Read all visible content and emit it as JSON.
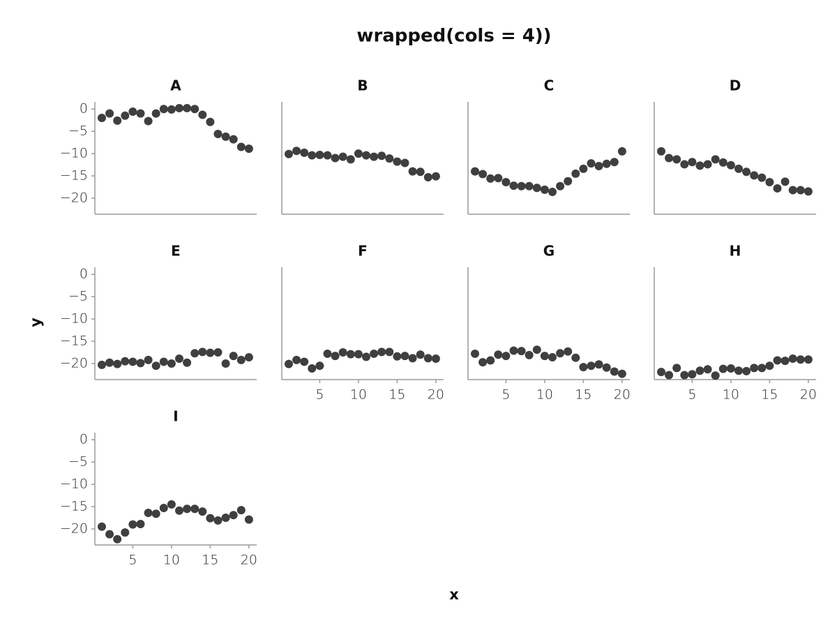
{
  "title": "wrapped(cols = 4))",
  "xlabel": "x",
  "ylabel": "y",
  "chart_data": [
    {
      "type": "scatter",
      "title": "A",
      "color": "#3f3f3f",
      "x": [
        1,
        2,
        3,
        4,
        5,
        6,
        7,
        8,
        9,
        10,
        11,
        12,
        13,
        14,
        15,
        16,
        17,
        18,
        19,
        20
      ],
      "values": [
        -2,
        -1,
        -2.6,
        -1.5,
        -0.6,
        -1,
        -2.7,
        -1,
        0,
        -0.1,
        0.2,
        0.2,
        0,
        -1.3,
        -2.9,
        -5.6,
        -6.2,
        -6.8,
        -8.5,
        -8.9
      ],
      "xlim": [
        0.1,
        21
      ],
      "ylim": [
        -23.6,
        1.6
      ],
      "yticks": [
        0,
        {
          "value": -5,
          "label": "−5"
        },
        {
          "value": -10,
          "label": "−10"
        },
        {
          "value": -15,
          "label": "−15"
        },
        {
          "value": -20,
          "label": "−20"
        }
      ]
    },
    {
      "type": "scatter",
      "title": "B",
      "color": "#3f3f3f",
      "x": [
        1,
        2,
        3,
        4,
        5,
        6,
        7,
        8,
        9,
        10,
        11,
        12,
        13,
        14,
        15,
        16,
        17,
        18,
        19,
        20
      ],
      "values": [
        -10.1,
        -9.4,
        -9.8,
        -10.4,
        -10.3,
        -10.4,
        -11,
        -10.7,
        -11.3,
        -10,
        -10.4,
        -10.7,
        -10.5,
        -11.1,
        -11.8,
        -12.1,
        -14,
        -14.1,
        -15.3,
        -15.1
      ],
      "xlim": [
        0.1,
        21
      ],
      "ylim": [
        -23.6,
        1.6
      ]
    },
    {
      "type": "scatter",
      "title": "C",
      "color": "#3f3f3f",
      "x": [
        1,
        2,
        3,
        4,
        5,
        6,
        7,
        8,
        9,
        10,
        11,
        12,
        13,
        14,
        15,
        16,
        17,
        18,
        19,
        20
      ],
      "values": [
        -14,
        -14.6,
        -15.6,
        -15.5,
        -16.4,
        -17.2,
        -17.3,
        -17.3,
        -17.7,
        -18.1,
        -18.6,
        -17.3,
        -16.2,
        -14.5,
        -13.4,
        -12.2,
        -12.8,
        -12.3,
        -11.9,
        -9.5
      ],
      "xlim": [
        0.1,
        21
      ],
      "ylim": [
        -23.6,
        1.6
      ]
    },
    {
      "type": "scatter",
      "title": "D",
      "color": "#3f3f3f",
      "x": [
        1,
        2,
        3,
        4,
        5,
        6,
        7,
        8,
        9,
        10,
        11,
        12,
        13,
        14,
        15,
        16,
        17,
        18,
        19,
        20
      ],
      "values": [
        -9.5,
        -11,
        -11.3,
        -12.4,
        -11.9,
        -12.7,
        -12.4,
        -11.3,
        -12,
        -12.6,
        -13.4,
        -14.1,
        -14.9,
        -15.4,
        -16.4,
        -17.8,
        -16.3,
        -18.2,
        -18.2,
        -18.5
      ],
      "xlim": [
        0.1,
        21
      ],
      "ylim": [
        -23.6,
        1.6
      ]
    },
    {
      "type": "scatter",
      "title": "E",
      "color": "#3f3f3f",
      "x": [
        1,
        2,
        3,
        4,
        5,
        6,
        7,
        8,
        9,
        10,
        11,
        12,
        13,
        14,
        15,
        16,
        17,
        18,
        19,
        20
      ],
      "values": [
        -20.3,
        -19.8,
        -20.1,
        -19.5,
        -19.6,
        -19.9,
        -19.2,
        -20.5,
        -19.6,
        -20,
        -18.9,
        -19.8,
        -17.7,
        -17.4,
        -17.6,
        -17.5,
        -20,
        -18.3,
        -19.2,
        -18.6
      ],
      "xlim": [
        0.1,
        21
      ],
      "ylim": [
        -23.6,
        1.6
      ],
      "yticks": [
        0,
        {
          "value": -5,
          "label": "−5"
        },
        {
          "value": -10,
          "label": "−10"
        },
        {
          "value": -15,
          "label": "−15"
        },
        {
          "value": -20,
          "label": "−20"
        }
      ]
    },
    {
      "type": "scatter",
      "title": "F",
      "color": "#3f3f3f",
      "x": [
        1,
        2,
        3,
        4,
        5,
        6,
        7,
        8,
        9,
        10,
        11,
        12,
        13,
        14,
        15,
        16,
        17,
        18,
        19,
        20
      ],
      "values": [
        -20.1,
        -19.2,
        -19.6,
        -21.1,
        -20.5,
        -17.8,
        -18.3,
        -17.5,
        -17.9,
        -17.9,
        -18.5,
        -17.8,
        -17.4,
        -17.4,
        -18.4,
        -18.3,
        -18.8,
        -18,
        -18.8,
        -18.9
      ],
      "xlim": [
        0.1,
        21
      ],
      "ylim": [
        -23.6,
        1.6
      ],
      "xticks": [
        5,
        10,
        15,
        20
      ]
    },
    {
      "type": "scatter",
      "title": "G",
      "color": "#3f3f3f",
      "x": [
        1,
        2,
        3,
        4,
        5,
        6,
        7,
        8,
        9,
        10,
        11,
        12,
        13,
        14,
        15,
        16,
        17,
        18,
        19,
        20
      ],
      "values": [
        -17.8,
        -19.7,
        -19.3,
        -18,
        -18.3,
        -17.1,
        -17.2,
        -18.1,
        -16.9,
        -18.3,
        -18.6,
        -17.7,
        -17.3,
        -18.7,
        -20.8,
        -20.5,
        -20.2,
        -20.9,
        -21.8,
        -22.3
      ],
      "xlim": [
        0.1,
        21
      ],
      "ylim": [
        -23.6,
        1.6
      ],
      "xticks": [
        5,
        10,
        15,
        20
      ]
    },
    {
      "type": "scatter",
      "title": "H",
      "color": "#3f3f3f",
      "x": [
        1,
        2,
        3,
        4,
        5,
        6,
        7,
        8,
        9,
        10,
        11,
        12,
        13,
        14,
        15,
        16,
        17,
        18,
        19,
        20
      ],
      "values": [
        -21.9,
        -22.6,
        -21,
        -22.6,
        -22.4,
        -21.6,
        -21.3,
        -22.7,
        -21.2,
        -21.1,
        -21.6,
        -21.7,
        -21,
        -21,
        -20.5,
        -19.3,
        -19.4,
        -18.9,
        -19.1,
        -19.1
      ],
      "xlim": [
        0.1,
        21
      ],
      "ylim": [
        -23.6,
        1.6
      ],
      "xticks": [
        5,
        10,
        15,
        20
      ]
    },
    {
      "type": "scatter",
      "title": "I",
      "color": "#3f3f3f",
      "x": [
        1,
        2,
        3,
        4,
        5,
        6,
        7,
        8,
        9,
        10,
        11,
        12,
        13,
        14,
        15,
        16,
        17,
        18,
        19,
        20
      ],
      "values": [
        -19.5,
        -21.2,
        -22.3,
        -20.8,
        -19,
        -18.9,
        -16.4,
        -16.6,
        -15.3,
        -14.5,
        -15.9,
        -15.5,
        -15.5,
        -16.1,
        -17.6,
        -18.1,
        -17.5,
        -16.9,
        -15.8,
        -17.9
      ],
      "xlim": [
        0.1,
        21
      ],
      "ylim": [
        -23.6,
        1.6
      ],
      "xticks": [
        5,
        10,
        15,
        20
      ],
      "yticks": [
        0,
        {
          "value": -5,
          "label": "−5"
        },
        {
          "value": -10,
          "label": "−10"
        },
        {
          "value": -15,
          "label": "−15"
        },
        {
          "value": -20,
          "label": "−20"
        }
      ]
    }
  ]
}
